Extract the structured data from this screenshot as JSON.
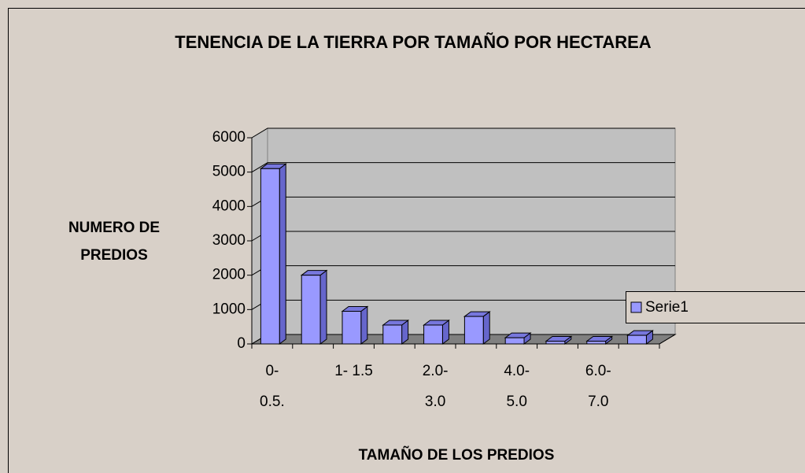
{
  "chart_data": {
    "type": "bar3d",
    "title": "TENENCIA DE LA TIERRA POR TAMAÑO POR HECTAREA",
    "ylabel": "NUMERO DE PREDIOS",
    "xlabel": "TAMAÑO DE LOS PREDIOS",
    "categories": [
      "0- 0.5.",
      null,
      "1- 1.5",
      null,
      "2.0- 3.0",
      null,
      "4.0- 5.0",
      null,
      "6.0- 7.0",
      null
    ],
    "series": [
      {
        "name": "Serie1",
        "color": "#9999ff",
        "values": [
          5100,
          2000,
          950,
          550,
          550,
          800,
          180,
          80,
          80,
          250
        ]
      }
    ],
    "ylim": [
      0,
      6000
    ],
    "yticks": [
      0,
      1000,
      2000,
      3000,
      4000,
      5000,
      6000
    ],
    "grid": true,
    "legend": "right"
  }
}
